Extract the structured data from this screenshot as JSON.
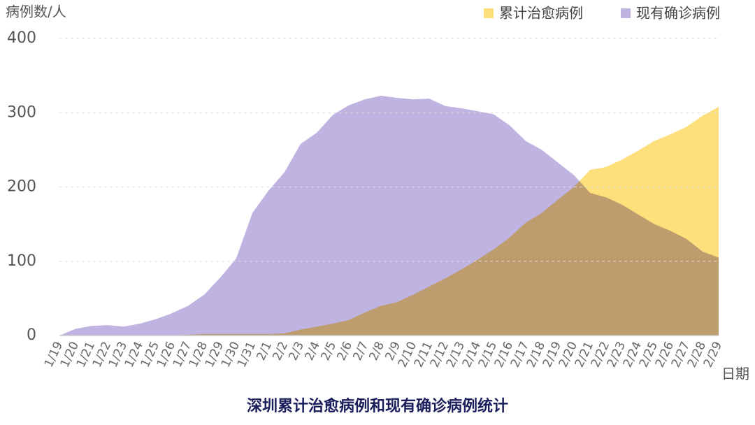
{
  "chart_data": {
    "type": "area",
    "title": "深圳累计治愈病例和现有确诊病例统计",
    "y_label": "病例数/人",
    "x_label": "日期",
    "categories": [
      "1/19",
      "1/20",
      "1/21",
      "1/22",
      "1/23",
      "1/24",
      "1/25",
      "1/26",
      "1/27",
      "1/28",
      "1/29",
      "1/30",
      "1/31",
      "2/1",
      "2/2",
      "2/3",
      "2/4",
      "2/5",
      "2/6",
      "2/7",
      "2/8",
      "2/9",
      "2/10",
      "2/11",
      "2/12",
      "2/13",
      "2/14",
      "2/15",
      "2/16",
      "2/17",
      "2/18",
      "2/19",
      "2/20",
      "2/21",
      "2/22",
      "2/23",
      "2/24",
      "2/25",
      "2/26",
      "2/27",
      "2/28",
      "2/29"
    ],
    "series": [
      {
        "name": "累计治愈病例",
        "color": "#fddf7c",
        "values": [
          0,
          0,
          0,
          0,
          0,
          0,
          0,
          0,
          1,
          2,
          2,
          2,
          2,
          2,
          3,
          8,
          12,
          16,
          21,
          31,
          40,
          45,
          55,
          66,
          77,
          89,
          102,
          116,
          132,
          152,
          165,
          183,
          200,
          223,
          227,
          237,
          249,
          262,
          271,
          281,
          296,
          308
        ]
      },
      {
        "name": "现有确诊病例",
        "color": "#bfb3e1",
        "values": [
          0,
          9,
          13,
          14,
          12,
          16,
          22,
          30,
          40,
          55,
          78,
          104,
          165,
          195,
          220,
          258,
          273,
          297,
          310,
          318,
          323,
          320,
          318,
          319,
          309,
          306,
          302,
          298,
          283,
          262,
          250,
          233,
          216,
          192,
          186,
          176,
          163,
          150,
          141,
          130,
          113,
          105
        ]
      }
    ],
    "ylim": [
      0,
      400
    ],
    "yticks": [
      0,
      100,
      200,
      300,
      400
    ],
    "grid": true,
    "legend": "top-right"
  }
}
